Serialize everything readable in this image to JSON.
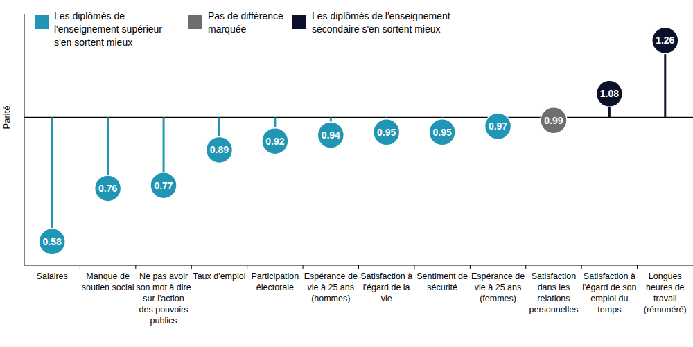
{
  "chart_data": {
    "type": "lollipop",
    "y_label": "Parité",
    "categories": [
      "Salaires",
      "Manque de soutien social",
      "Ne pas avoir son mot à dire sur l'action des pouvoirs publics",
      "Taux d'emploi",
      "Participation électorale",
      "Espérance de vie à 25 ans (hommes)",
      "Satisfaction à l'égard de la vie",
      "Sentiment de sécurité",
      "Espérance de vie à 25 ans (femmes)",
      "Satisfaction dans les relations personnelles",
      "Satisfaction à l'égard de son emploi du temps",
      "Longues heures de travail (rémunéré)"
    ],
    "values": [
      0.58,
      0.76,
      0.77,
      0.89,
      0.92,
      0.94,
      0.95,
      0.95,
      0.97,
      0.99,
      1.08,
      1.26
    ],
    "colors": [
      "#2196b4",
      "#2196b4",
      "#2196b4",
      "#2196b4",
      "#2196b4",
      "#2196b4",
      "#2196b4",
      "#2196b4",
      "#2196b4",
      "#6d6e70",
      "#0b1128",
      "#0b1128"
    ],
    "baseline": 1,
    "ylim": [
      0.5,
      1.35
    ],
    "tick_labels": false,
    "data_labels": true,
    "legend": "top-left",
    "legend_entries": [
      {
        "label": "Les diplômés de l'enseignement supérieur s'en sortent mieux",
        "color": "#2196b4"
      },
      {
        "label": "Pas de différence marquée",
        "color": "#6d6e70"
      },
      {
        "label": "Les diplômés de l'enseignement secondaire s'en sortent mieux",
        "color": "#0b1128"
      }
    ]
  }
}
